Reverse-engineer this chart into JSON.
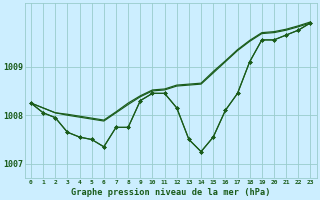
{
  "title": "Graphe pression niveau de la mer (hPa)",
  "bg_color": "#cceeff",
  "grid_color": "#99cccc",
  "line_color": "#1a5c1a",
  "xlim": [
    -0.5,
    23.5
  ],
  "ylim": [
    1006.7,
    1010.3
  ],
  "yticks": [
    1007,
    1008,
    1009
  ],
  "xticks": [
    0,
    1,
    2,
    3,
    4,
    5,
    6,
    7,
    8,
    9,
    10,
    11,
    12,
    13,
    14,
    15,
    16,
    17,
    18,
    19,
    20,
    21,
    22,
    23
  ],
  "lines_with_markers": [
    [
      1008.25,
      1008.05,
      1007.95,
      1007.65,
      1007.55,
      1007.5,
      1007.35,
      1007.75,
      1007.75,
      1008.3,
      1008.45,
      1008.45,
      1008.15,
      1007.5,
      1007.25,
      1007.55,
      1008.1,
      1008.45,
      1009.1,
      1009.55,
      1009.55,
      1009.65,
      1009.75,
      1009.9
    ],
    [
      1008.25,
      1008.05,
      1007.95,
      1007.65,
      1007.55,
      1007.5,
      1007.35,
      1007.75,
      1007.75,
      1008.3,
      1008.45,
      1008.45,
      1008.15,
      1007.5,
      1007.25,
      1007.55,
      1008.1,
      1008.45,
      1009.1,
      1009.55,
      1009.55,
      1009.65,
      1009.75,
      1009.9
    ]
  ],
  "lines_smooth": [
    [
      1008.25,
      1008.15,
      1008.05,
      1008.0,
      1007.96,
      1007.92,
      1007.88,
      1008.05,
      1008.22,
      1008.38,
      1008.5,
      1008.52,
      1008.6,
      1008.62,
      1008.64,
      1008.87,
      1009.1,
      1009.33,
      1009.52,
      1009.68,
      1009.7,
      1009.75,
      1009.82,
      1009.9
    ],
    [
      1008.25,
      1008.15,
      1008.05,
      1008.02,
      1007.98,
      1007.94,
      1007.9,
      1008.07,
      1008.25,
      1008.4,
      1008.52,
      1008.54,
      1008.62,
      1008.64,
      1008.66,
      1008.9,
      1009.12,
      1009.35,
      1009.54,
      1009.7,
      1009.72,
      1009.77,
      1009.84,
      1009.92
    ]
  ]
}
